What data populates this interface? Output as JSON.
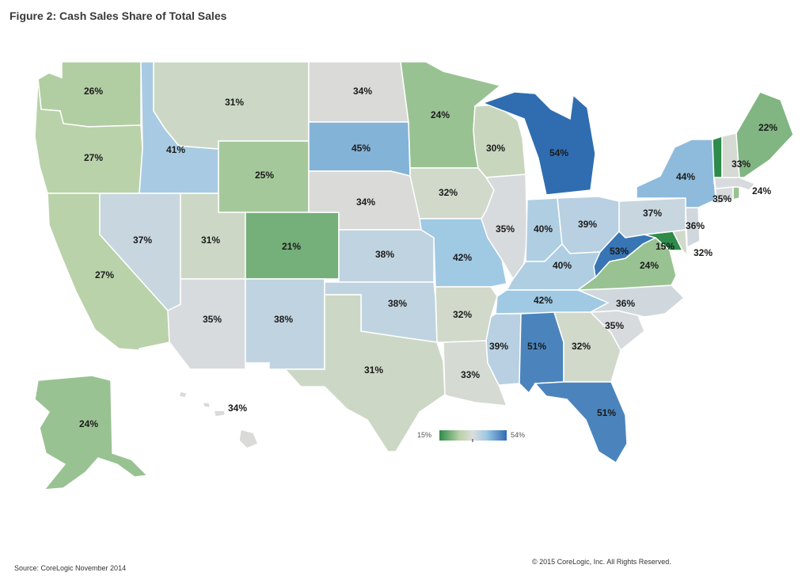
{
  "title": "Figure 2: Cash Sales Share of Total Sales",
  "source": "Source: CoreLogic November 2014",
  "copyright": "© 2015 CoreLogic, Inc. All Rights Reserved.",
  "legend": {
    "min_label": "15%",
    "max_label": "54%",
    "min": 15,
    "max": 54,
    "colors": [
      "#2e8b4a",
      "#b9d2a8",
      "#dcdcdc",
      "#9ec8e4",
      "#2f6db0"
    ]
  },
  "states": [
    {
      "id": "WA",
      "value": 26,
      "label": "26%"
    },
    {
      "id": "OR",
      "value": 27,
      "label": "27%"
    },
    {
      "id": "CA",
      "value": 27,
      "label": "27%"
    },
    {
      "id": "ID",
      "value": 41,
      "label": "41%"
    },
    {
      "id": "NV",
      "value": 37,
      "label": "37%"
    },
    {
      "id": "MT",
      "value": 31,
      "label": "31%"
    },
    {
      "id": "WY",
      "value": 25,
      "label": "25%"
    },
    {
      "id": "UT",
      "value": 31,
      "label": "31%"
    },
    {
      "id": "AZ",
      "value": 35,
      "label": "35%"
    },
    {
      "id": "CO",
      "value": 21,
      "label": "21%"
    },
    {
      "id": "NM",
      "value": 38,
      "label": "38%"
    },
    {
      "id": "ND",
      "value": 34,
      "label": "34%"
    },
    {
      "id": "SD",
      "value": 45,
      "label": "45%"
    },
    {
      "id": "NE",
      "value": 34,
      "label": "34%"
    },
    {
      "id": "KS",
      "value": 38,
      "label": "38%"
    },
    {
      "id": "OK",
      "value": 38,
      "label": "38%"
    },
    {
      "id": "TX",
      "value": 31,
      "label": "31%"
    },
    {
      "id": "MN",
      "value": 24,
      "label": "24%"
    },
    {
      "id": "IA",
      "value": 32,
      "label": "32%"
    },
    {
      "id": "MO",
      "value": 42,
      "label": "42%"
    },
    {
      "id": "AR",
      "value": 32,
      "label": "32%"
    },
    {
      "id": "LA",
      "value": 33,
      "label": "33%"
    },
    {
      "id": "WI",
      "value": 30,
      "label": "30%"
    },
    {
      "id": "IL",
      "value": 35,
      "label": "35%"
    },
    {
      "id": "MI",
      "value": 54,
      "label": "54%"
    },
    {
      "id": "IN",
      "value": 40,
      "label": "40%"
    },
    {
      "id": "OH",
      "value": 39,
      "label": "39%"
    },
    {
      "id": "KY",
      "value": 40,
      "label": "40%"
    },
    {
      "id": "TN",
      "value": 42,
      "label": "42%"
    },
    {
      "id": "MS",
      "value": 39,
      "label": "39%"
    },
    {
      "id": "AL",
      "value": 51,
      "label": "51%"
    },
    {
      "id": "GA",
      "value": 32,
      "label": "32%"
    },
    {
      "id": "FL",
      "value": 51,
      "label": "51%"
    },
    {
      "id": "SC",
      "value": 35,
      "label": "35%"
    },
    {
      "id": "NC",
      "value": 36,
      "label": "36%"
    },
    {
      "id": "VA",
      "value": 24,
      "label": "24%"
    },
    {
      "id": "WV",
      "value": 53,
      "label": "53%"
    },
    {
      "id": "MD",
      "value": 15,
      "label": "15%"
    },
    {
      "id": "DE",
      "value": 32,
      "label": "32%"
    },
    {
      "id": "NJ",
      "value": 36,
      "label": "36%"
    },
    {
      "id": "PA",
      "value": 37,
      "label": "37%"
    },
    {
      "id": "NY",
      "value": 44,
      "label": "44%"
    },
    {
      "id": "CT",
      "value": 35,
      "label": "35%"
    },
    {
      "id": "RI",
      "value": 24,
      "label": "24%"
    },
    {
      "id": "VT",
      "value": 15,
      "label": ""
    },
    {
      "id": "NH",
      "value": 33,
      "label": "33%"
    },
    {
      "id": "ME",
      "value": 22,
      "label": "22%"
    },
    {
      "id": "AK",
      "value": 24,
      "label": "24%"
    },
    {
      "id": "HI",
      "value": 34,
      "label": "34%"
    }
  ]
}
